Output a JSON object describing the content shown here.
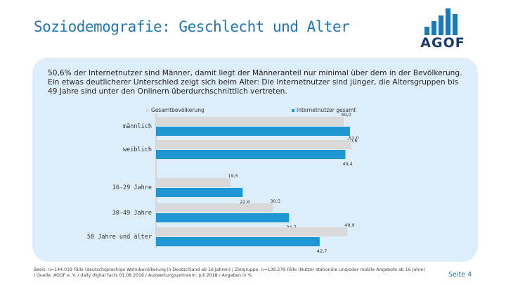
{
  "header": {
    "title": "Soziodemografie: Geschlecht und Alter",
    "logo_text": "AGOF"
  },
  "intro": "50,6% der Internetnutzer sind Männer, damit liegt der Männeranteil nur minimal über dem in der Bevölkerung. Ein etwas deutlicherer Unterschied zeigt sich beim Alter: Die Internetnutzer sind jünger, die Altersgruppen bis 49 Jahre sind unter den Onlinern überdurchschnittlich vertreten.",
  "chart_data": {
    "type": "bar",
    "orientation": "horizontal",
    "categories": [
      "männlich",
      "weiblich",
      "16-29 Jahre",
      "30-49 Jahre",
      "50 Jahre und älter"
    ],
    "series": [
      {
        "name": "Gesamtbevölkerung",
        "values": [
          49.0,
          51.0,
          19.5,
          30.5,
          49.9
        ],
        "labels": [
          "49,0",
          "51,0",
          "19,5",
          "30,5",
          "49,9"
        ],
        "color": "#d9d9d9"
      },
      {
        "name": "Internetnutzer gesamt",
        "values": [
          50.6,
          49.4,
          22.6,
          34.7,
          42.7
        ],
        "labels": [
          "50,6",
          "49,4",
          "22,6",
          "34,7",
          "42,7"
        ],
        "color": "#1f97d4"
      }
    ],
    "xlim": [
      0,
      55
    ],
    "legend_position": "top"
  },
  "footer": {
    "footnote": "Basis: n=144.019 Fälle (deutschsprachige Wohnbevölkerung in Deutschland ab 16 Jahren) / Zielgruppe: n=139.279 Fälle (Nutzer stationäre und/oder mobile Angebote ab 16 Jahre) / Quelle: AGOF e. V. / daily digital facts 01.08.2018 / Auswertungszeitraum: Juli 2018 / Angaben in %",
    "page": "Seite 4"
  },
  "colors": {
    "accent": "#1f77b4",
    "panel": "#ddeefa"
  }
}
